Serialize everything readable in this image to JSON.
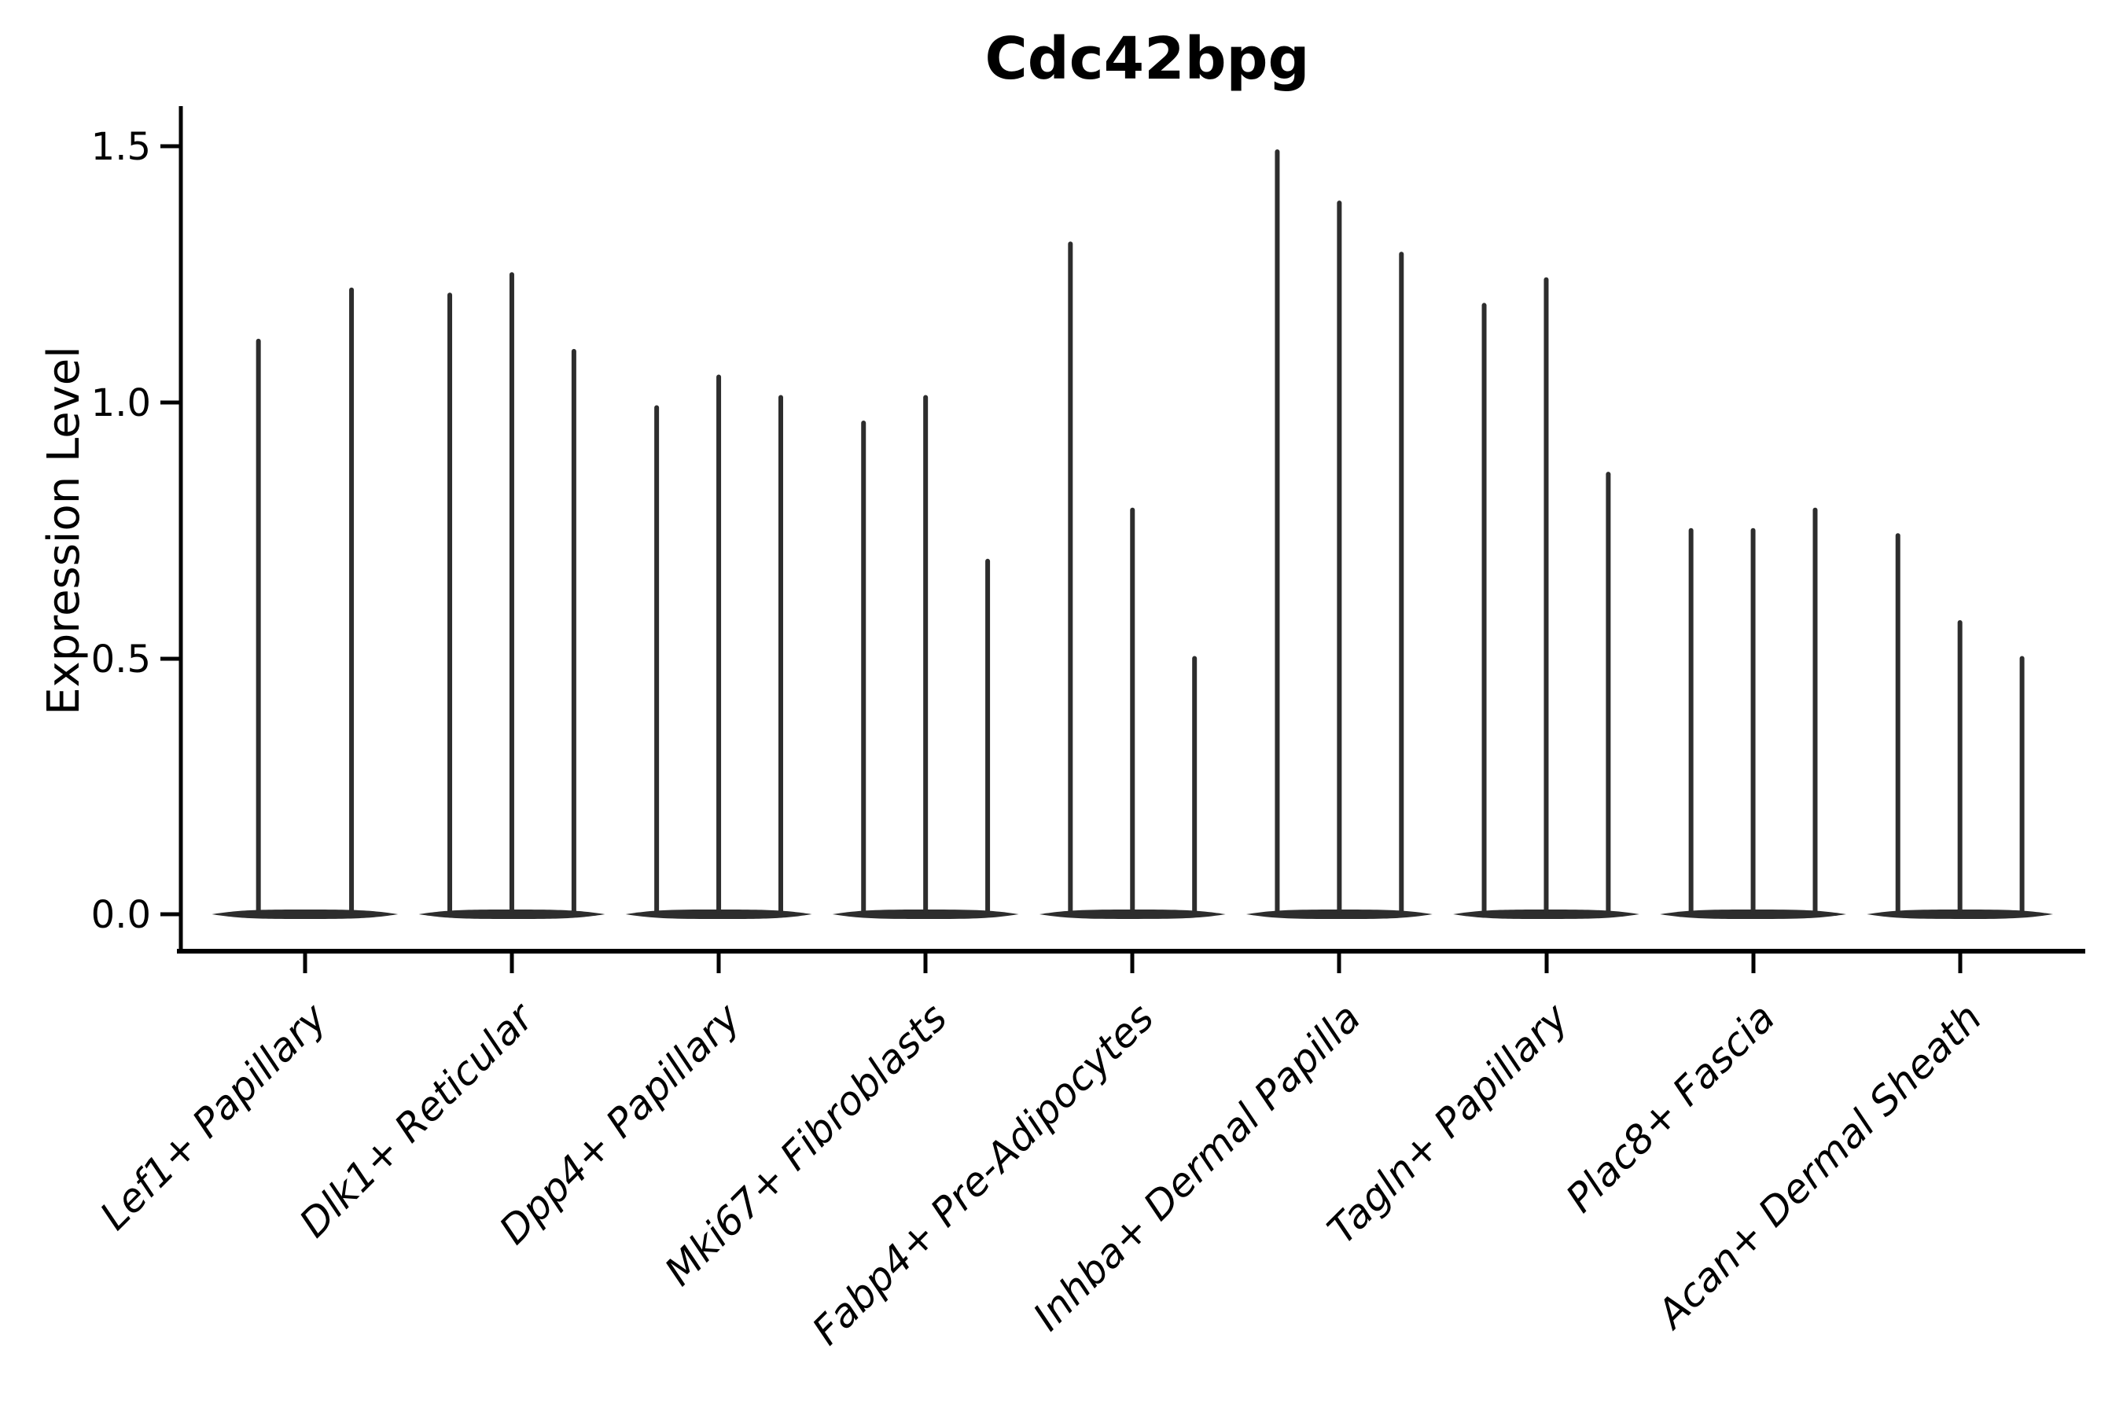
{
  "title": "Cdc42bpg",
  "axes": {
    "y_label": "Expression Level",
    "y_ticks": [
      "0.0",
      "0.5",
      "1.0",
      "1.5"
    ],
    "x_tick_count": 9
  },
  "colors": {
    "violin": "#2d2d2d",
    "axis": "#000000",
    "text": "#000000",
    "background": "#ffffff"
  },
  "chart_data": {
    "type": "violin",
    "title": "Cdc42bpg",
    "xlabel": "",
    "ylabel": "Expression Level",
    "ylim": [
      0,
      1.55
    ],
    "y_tick_values": [
      0.0,
      0.5,
      1.0,
      1.5
    ],
    "grid": false,
    "legend_position": "none",
    "violin_style": "very narrow spikes with flat basal lobe at zero, single dark gray color",
    "categories": [
      "Lef1+ Papillary",
      "Dlk1+ Reticular",
      "Dpp4+ Papillary",
      "Mki67+ Fibroblasts",
      "Fabp4+ Pre-Adipocytes",
      "Inhba+ Dermal Papilla",
      "Tagln+ Papillary",
      "Plac8+ Fascia",
      "Acan+ Dermal Sheath"
    ],
    "groups": [
      {
        "category": "Lef1+ Papillary",
        "violins": 2,
        "max_expression": [
          1.12,
          1.22
        ]
      },
      {
        "category": "Dlk1+ Reticular",
        "violins": 3,
        "max_expression": [
          1.21,
          1.25,
          1.1
        ]
      },
      {
        "category": "Dpp4+ Papillary",
        "violins": 3,
        "max_expression": [
          0.99,
          1.05,
          1.01
        ]
      },
      {
        "category": "Mki67+ Fibroblasts",
        "violins": 3,
        "max_expression": [
          0.96,
          1.01,
          0.69
        ]
      },
      {
        "category": "Fabp4+ Pre-Adipocytes",
        "violins": 3,
        "max_expression": [
          1.31,
          0.79,
          0.5
        ]
      },
      {
        "category": "Inhba+ Dermal Papilla",
        "violins": 3,
        "max_expression": [
          1.49,
          1.39,
          1.29
        ]
      },
      {
        "category": "Tagln+ Papillary",
        "violins": 3,
        "max_expression": [
          1.19,
          1.24,
          0.86
        ]
      },
      {
        "category": "Plac8+ Fascia",
        "violins": 3,
        "max_expression": [
          0.75,
          0.75,
          0.79
        ]
      },
      {
        "category": "Acan+ Dermal Sheath",
        "violins": 3,
        "max_expression": [
          0.74,
          0.57,
          0.5
        ]
      }
    ]
  }
}
